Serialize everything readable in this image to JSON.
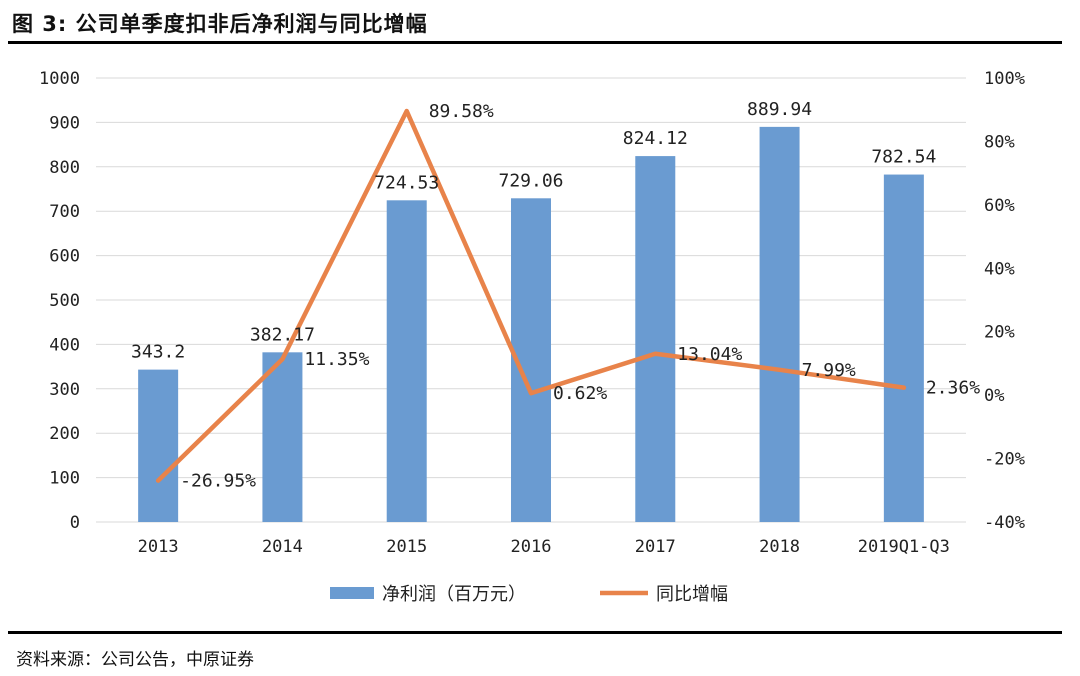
{
  "figure": {
    "title": "图 3:  公司单季度扣非后净利润与同比增幅",
    "source": "资料来源：公司公告，中原证券"
  },
  "chart_data": {
    "type": "bar",
    "categories": [
      "2013",
      "2014",
      "2015",
      "2016",
      "2017",
      "2018",
      "2019Q1-Q3"
    ],
    "series": [
      {
        "name": "净利润（百万元）",
        "type": "bar",
        "axis": "left",
        "color": "#6a9bd1",
        "values": [
          343.2,
          382.17,
          724.53,
          729.06,
          824.12,
          889.94,
          782.54
        ],
        "labels": [
          "343.2",
          "382.17",
          "724.53",
          "729.06",
          "824.12",
          "889.94",
          "782.54"
        ]
      },
      {
        "name": "同比增幅",
        "type": "line",
        "axis": "right",
        "color": "#e8834a",
        "values": [
          -26.95,
          11.35,
          89.58,
          0.62,
          13.04,
          7.99,
          2.36
        ],
        "labels": [
          "-26.95%",
          "11.35%",
          "89.58%",
          "0.62%",
          "13.04%",
          "7.99%",
          "2.36%"
        ]
      }
    ],
    "left_axis": {
      "min": 0,
      "max": 1000,
      "step": 100,
      "ticks": [
        "0",
        "100",
        "200",
        "300",
        "400",
        "500",
        "600",
        "700",
        "800",
        "900",
        "1000"
      ]
    },
    "right_axis": {
      "min": -40,
      "max": 100,
      "step": 20,
      "ticks": [
        "-40%",
        "-20%",
        "0%",
        "20%",
        "40%",
        "60%",
        "80%",
        "100%"
      ]
    },
    "grid": true,
    "legend_position": "bottom"
  }
}
